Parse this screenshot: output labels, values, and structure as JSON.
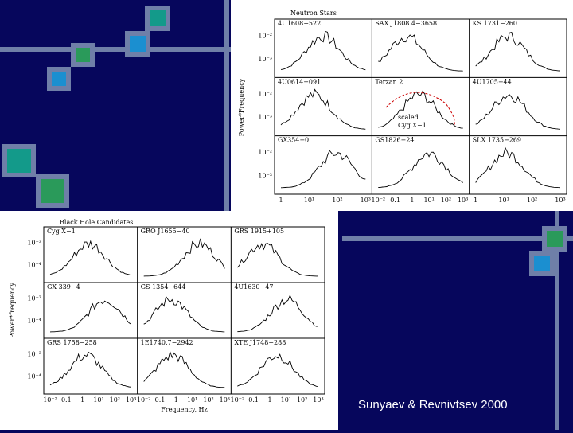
{
  "slide": {
    "caption": "Sunyaev & Revnivtsev 2000"
  },
  "figure_top": {
    "title": "Neutron Stars",
    "y_label": "Power*Frequency",
    "panels": [
      "4U1608−522",
      "SAX J1808.4−3658",
      "KS 1731−260",
      "4U0614+091",
      "Terzan 2",
      "4U1705−44",
      "GX354−0",
      "GS1826−24",
      "SLX 1735−269"
    ],
    "annotation": [
      "scaled",
      "Cyg X−1"
    ],
    "y_tick_labels": [
      "10⁻²",
      "10⁻³",
      "10⁻²",
      "10⁻³",
      "10⁻²",
      "10⁻³"
    ],
    "x_tick_labels": [
      [
        "1",
        "10¹",
        "10²",
        "10³"
      ],
      [
        "10⁻²",
        "0.1",
        "1",
        "10¹",
        "10²",
        "10³"
      ],
      [
        "1",
        "10¹",
        "10²",
        "10³"
      ]
    ]
  },
  "figure_bottom": {
    "title": "Black Hole Candidates",
    "y_label": "Power*frequency",
    "x_label": "Frequency, Hz",
    "panels": [
      "Cyg X−1",
      "GRO J1655−40",
      "GRS 1915+105",
      "GX 339−4",
      "GS 1354−644",
      "4U1630−47",
      "GRS 1758−258",
      "1E1740.7−2942",
      "XTE J1748−288"
    ],
    "y_tick_labels": [
      "10⁻³",
      "10⁻⁴",
      "10⁻³",
      "10⁻⁴",
      "10⁻³",
      "10⁻⁴"
    ],
    "x_tick_labels": [
      [
        "10⁻²",
        "0.1",
        "1",
        "10¹",
        "10²",
        "10³"
      ],
      [
        "10⁻²",
        "0.1",
        "1",
        "10¹",
        "10²",
        "10³"
      ],
      [
        "10⁻²",
        "0.1",
        "1",
        "10¹",
        "10²",
        "10³"
      ]
    ]
  }
}
